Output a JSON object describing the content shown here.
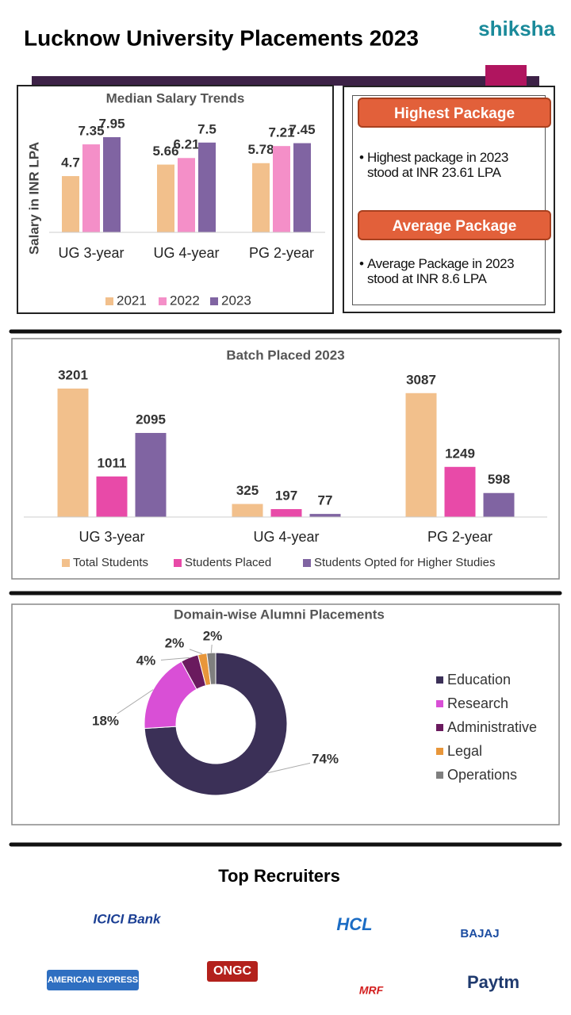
{
  "header": {
    "title": "Lucknow University Placements 2023",
    "brand": "shiksha"
  },
  "chart_data": [
    {
      "type": "bar",
      "title": "Median Salary Trends",
      "y_label": "Salary in INR LPA",
      "categories": [
        "UG 3-year",
        "UG 4-year",
        "PG 2-year"
      ],
      "series": [
        {
          "name": "2021",
          "color": "#f2c08c",
          "values": [
            4.7,
            5.66,
            5.78
          ]
        },
        {
          "name": "2022",
          "color": "#f48fc8",
          "values": [
            7.35,
            6.21,
            7.21
          ]
        },
        {
          "name": "2023",
          "color": "#8064a2",
          "values": [
            7.95,
            7.5,
            7.45
          ]
        }
      ]
    },
    {
      "type": "bar",
      "title": "Batch Placed 2023",
      "categories": [
        "UG 3-year",
        "UG 4-year",
        "PG 2-year"
      ],
      "series": [
        {
          "name": "Total Students",
          "color": "#f2c08c",
          "values": [
            3201,
            325,
            3087
          ]
        },
        {
          "name": "Students Placed",
          "color": "#e84aa8",
          "values": [
            1011,
            197,
            1249
          ]
        },
        {
          "name": "Students Opted for Higher Studies",
          "color": "#8064a2",
          "values": [
            2095,
            77,
            598
          ]
        }
      ]
    },
    {
      "type": "pie",
      "title": "Domain-wise Alumni Placements",
      "donut": true,
      "categories": [
        "Education",
        "Research",
        "Administrative",
        "Legal",
        "Operations"
      ],
      "values": [
        74,
        18,
        4,
        2,
        2
      ],
      "value_labels": [
        "74%",
        "18%",
        "4%",
        "2%",
        "2%"
      ],
      "colors": [
        "#3b3057",
        "#d94fd6",
        "#6a1a5e",
        "#e8963a",
        "#7f7f7f"
      ]
    }
  ],
  "info": [
    {
      "heading": "Highest Package",
      "text": "Highest package in 2023 stood at INR 23.61 LPA"
    },
    {
      "heading": "Average Package",
      "text": "Average Package in 2023 stood at INR 8.6 LPA"
    }
  ],
  "recruiters": {
    "title": "Top Recruiters",
    "logos": [
      "ICICI Bank",
      "ONGC",
      "HCL",
      "BAJAJ",
      "AMERICAN EXPRESS",
      "MRF",
      "Paytm"
    ]
  }
}
